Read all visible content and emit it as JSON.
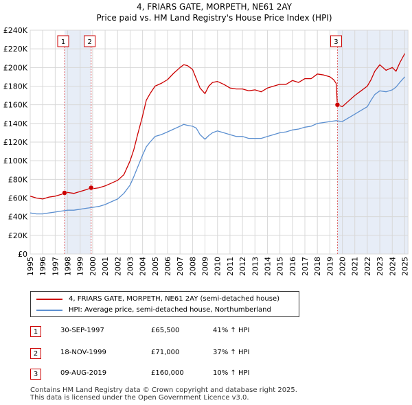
{
  "chart_data": {
    "type": "line",
    "title": "4, FRIARS GATE, MORPETH, NE61 2AY",
    "subtitle": "Price paid vs. HM Land Registry's House Price Index (HPI)",
    "xlim": [
      1995,
      2025.25
    ],
    "ylim": [
      0,
      240000
    ],
    "x_ticks": [
      1995,
      1996,
      1997,
      1998,
      1999,
      2000,
      2001,
      2002,
      2003,
      2004,
      2005,
      2006,
      2007,
      2008,
      2009,
      2010,
      2011,
      2012,
      2013,
      2014,
      2015,
      2016,
      2017,
      2018,
      2019,
      2020,
      2021,
      2022,
      2023,
      2024,
      2025
    ],
    "y_ticks": [
      0,
      20000,
      40000,
      60000,
      80000,
      100000,
      120000,
      140000,
      160000,
      180000,
      200000,
      220000,
      240000
    ],
    "y_tick_labels": [
      "£0",
      "£20K",
      "£40K",
      "£60K",
      "£80K",
      "£100K",
      "£120K",
      "£140K",
      "£160K",
      "£180K",
      "£200K",
      "£220K",
      "£240K"
    ],
    "grid": true,
    "series": [
      {
        "name": "4, FRIARS GATE, MORPETH, NE61 2AY (semi-detached house)",
        "color": "#cc0000",
        "x": [
          1995,
          1995.5,
          1996,
          1996.5,
          1997,
          1997.5,
          1997.75,
          1998,
          1998.5,
          1999,
          1999.5,
          1999.88,
          2000,
          2000.5,
          2001,
          2001.5,
          2002,
          2002.5,
          2003,
          2003.3,
          2003.6,
          2004,
          2004.3,
          2004.6,
          2005,
          2005.5,
          2006,
          2006.5,
          2007,
          2007.3,
          2007.6,
          2008,
          2008.3,
          2008.6,
          2009,
          2009.3,
          2009.6,
          2010,
          2010.5,
          2011,
          2011.5,
          2012,
          2012.5,
          2013,
          2013.5,
          2014,
          2014.5,
          2015,
          2015.5,
          2016,
          2016.5,
          2017,
          2017.5,
          2018,
          2018.5,
          2019,
          2019.3,
          2019.5,
          2019.6,
          2020,
          2020.5,
          2021,
          2021.5,
          2022,
          2022.3,
          2022.6,
          2023,
          2023.5,
          2024,
          2024.3,
          2024.6,
          2025
        ],
        "y": [
          62000,
          60000,
          59000,
          61000,
          62000,
          64000,
          65500,
          66000,
          65000,
          67000,
          69000,
          71000,
          70000,
          71000,
          73000,
          76000,
          79000,
          85000,
          100000,
          112000,
          128000,
          148000,
          165000,
          172000,
          180000,
          183000,
          187000,
          194000,
          200000,
          203000,
          202000,
          198000,
          188000,
          178000,
          172000,
          180000,
          184000,
          185000,
          182000,
          178000,
          177000,
          177000,
          175000,
          176000,
          174000,
          178000,
          180000,
          182000,
          182000,
          186000,
          184000,
          188000,
          188000,
          193000,
          192000,
          190000,
          187000,
          183000,
          160000,
          158000,
          164000,
          170000,
          175000,
          180000,
          187000,
          196000,
          203000,
          197000,
          200000,
          196000,
          205000,
          215000
        ]
      },
      {
        "name": "HPI: Average price, semi-detached house, Northumberland",
        "color": "#5b8fd0",
        "x": [
          1995,
          1995.5,
          1996,
          1996.5,
          1997,
          1997.5,
          1998,
          1998.5,
          1999,
          1999.5,
          2000,
          2000.5,
          2001,
          2001.5,
          2002,
          2002.5,
          2003,
          2003.3,
          2003.6,
          2004,
          2004.3,
          2004.6,
          2005,
          2005.5,
          2006,
          2006.5,
          2007,
          2007.3,
          2007.6,
          2008,
          2008.3,
          2008.6,
          2009,
          2009.3,
          2009.6,
          2010,
          2010.5,
          2011,
          2011.5,
          2012,
          2012.5,
          2013,
          2013.5,
          2014,
          2014.5,
          2015,
          2015.5,
          2016,
          2016.5,
          2017,
          2017.5,
          2018,
          2018.5,
          2019,
          2019.5,
          2020,
          2020.5,
          2021,
          2021.5,
          2022,
          2022.3,
          2022.6,
          2023,
          2023.5,
          2024,
          2024.3,
          2024.6,
          2025
        ],
        "y": [
          44000,
          43000,
          43000,
          44000,
          45000,
          46000,
          47000,
          47000,
          48000,
          49000,
          50000,
          51000,
          53000,
          56000,
          59000,
          65000,
          74000,
          83000,
          93000,
          106000,
          115000,
          120000,
          126000,
          128000,
          131000,
          134000,
          137000,
          139000,
          138000,
          137000,
          135000,
          128000,
          123000,
          127000,
          130000,
          132000,
          130000,
          128000,
          126000,
          126000,
          124000,
          124000,
          124000,
          126000,
          128000,
          130000,
          131000,
          133000,
          134000,
          136000,
          137000,
          140000,
          141000,
          142000,
          143000,
          142000,
          146000,
          150000,
          154000,
          158000,
          165000,
          171000,
          175000,
          174000,
          176000,
          179000,
          184000,
          190000
        ]
      }
    ],
    "sales": [
      {
        "label": "1",
        "date": "30-SEP-1997",
        "price": "£65,500",
        "hpi": "41% ↑ HPI",
        "x": 1997.75,
        "y": 65500
      },
      {
        "label": "2",
        "date": "18-NOV-1999",
        "price": "£71,000",
        "hpi": "37% ↑ HPI",
        "x": 1999.88,
        "y": 71000
      },
      {
        "label": "3",
        "date": "09-AUG-2019",
        "price": "£160,000",
        "hpi": "10% ↑ HPI",
        "x": 2019.61,
        "y": 160000
      }
    ],
    "shaded_regions": [
      [
        1997.75,
        1999.88
      ],
      [
        2019.61,
        2025.25
      ]
    ]
  },
  "legend": {
    "property_label": "4, FRIARS GATE, MORPETH, NE61 2AY (semi-detached house)",
    "hpi_label": "HPI: Average price, semi-detached house, Northumberland"
  },
  "footer": {
    "line1": "Contains HM Land Registry data © Crown copyright and database right 2025.",
    "line2": "This data is licensed under the Open Government Licence v3.0."
  }
}
